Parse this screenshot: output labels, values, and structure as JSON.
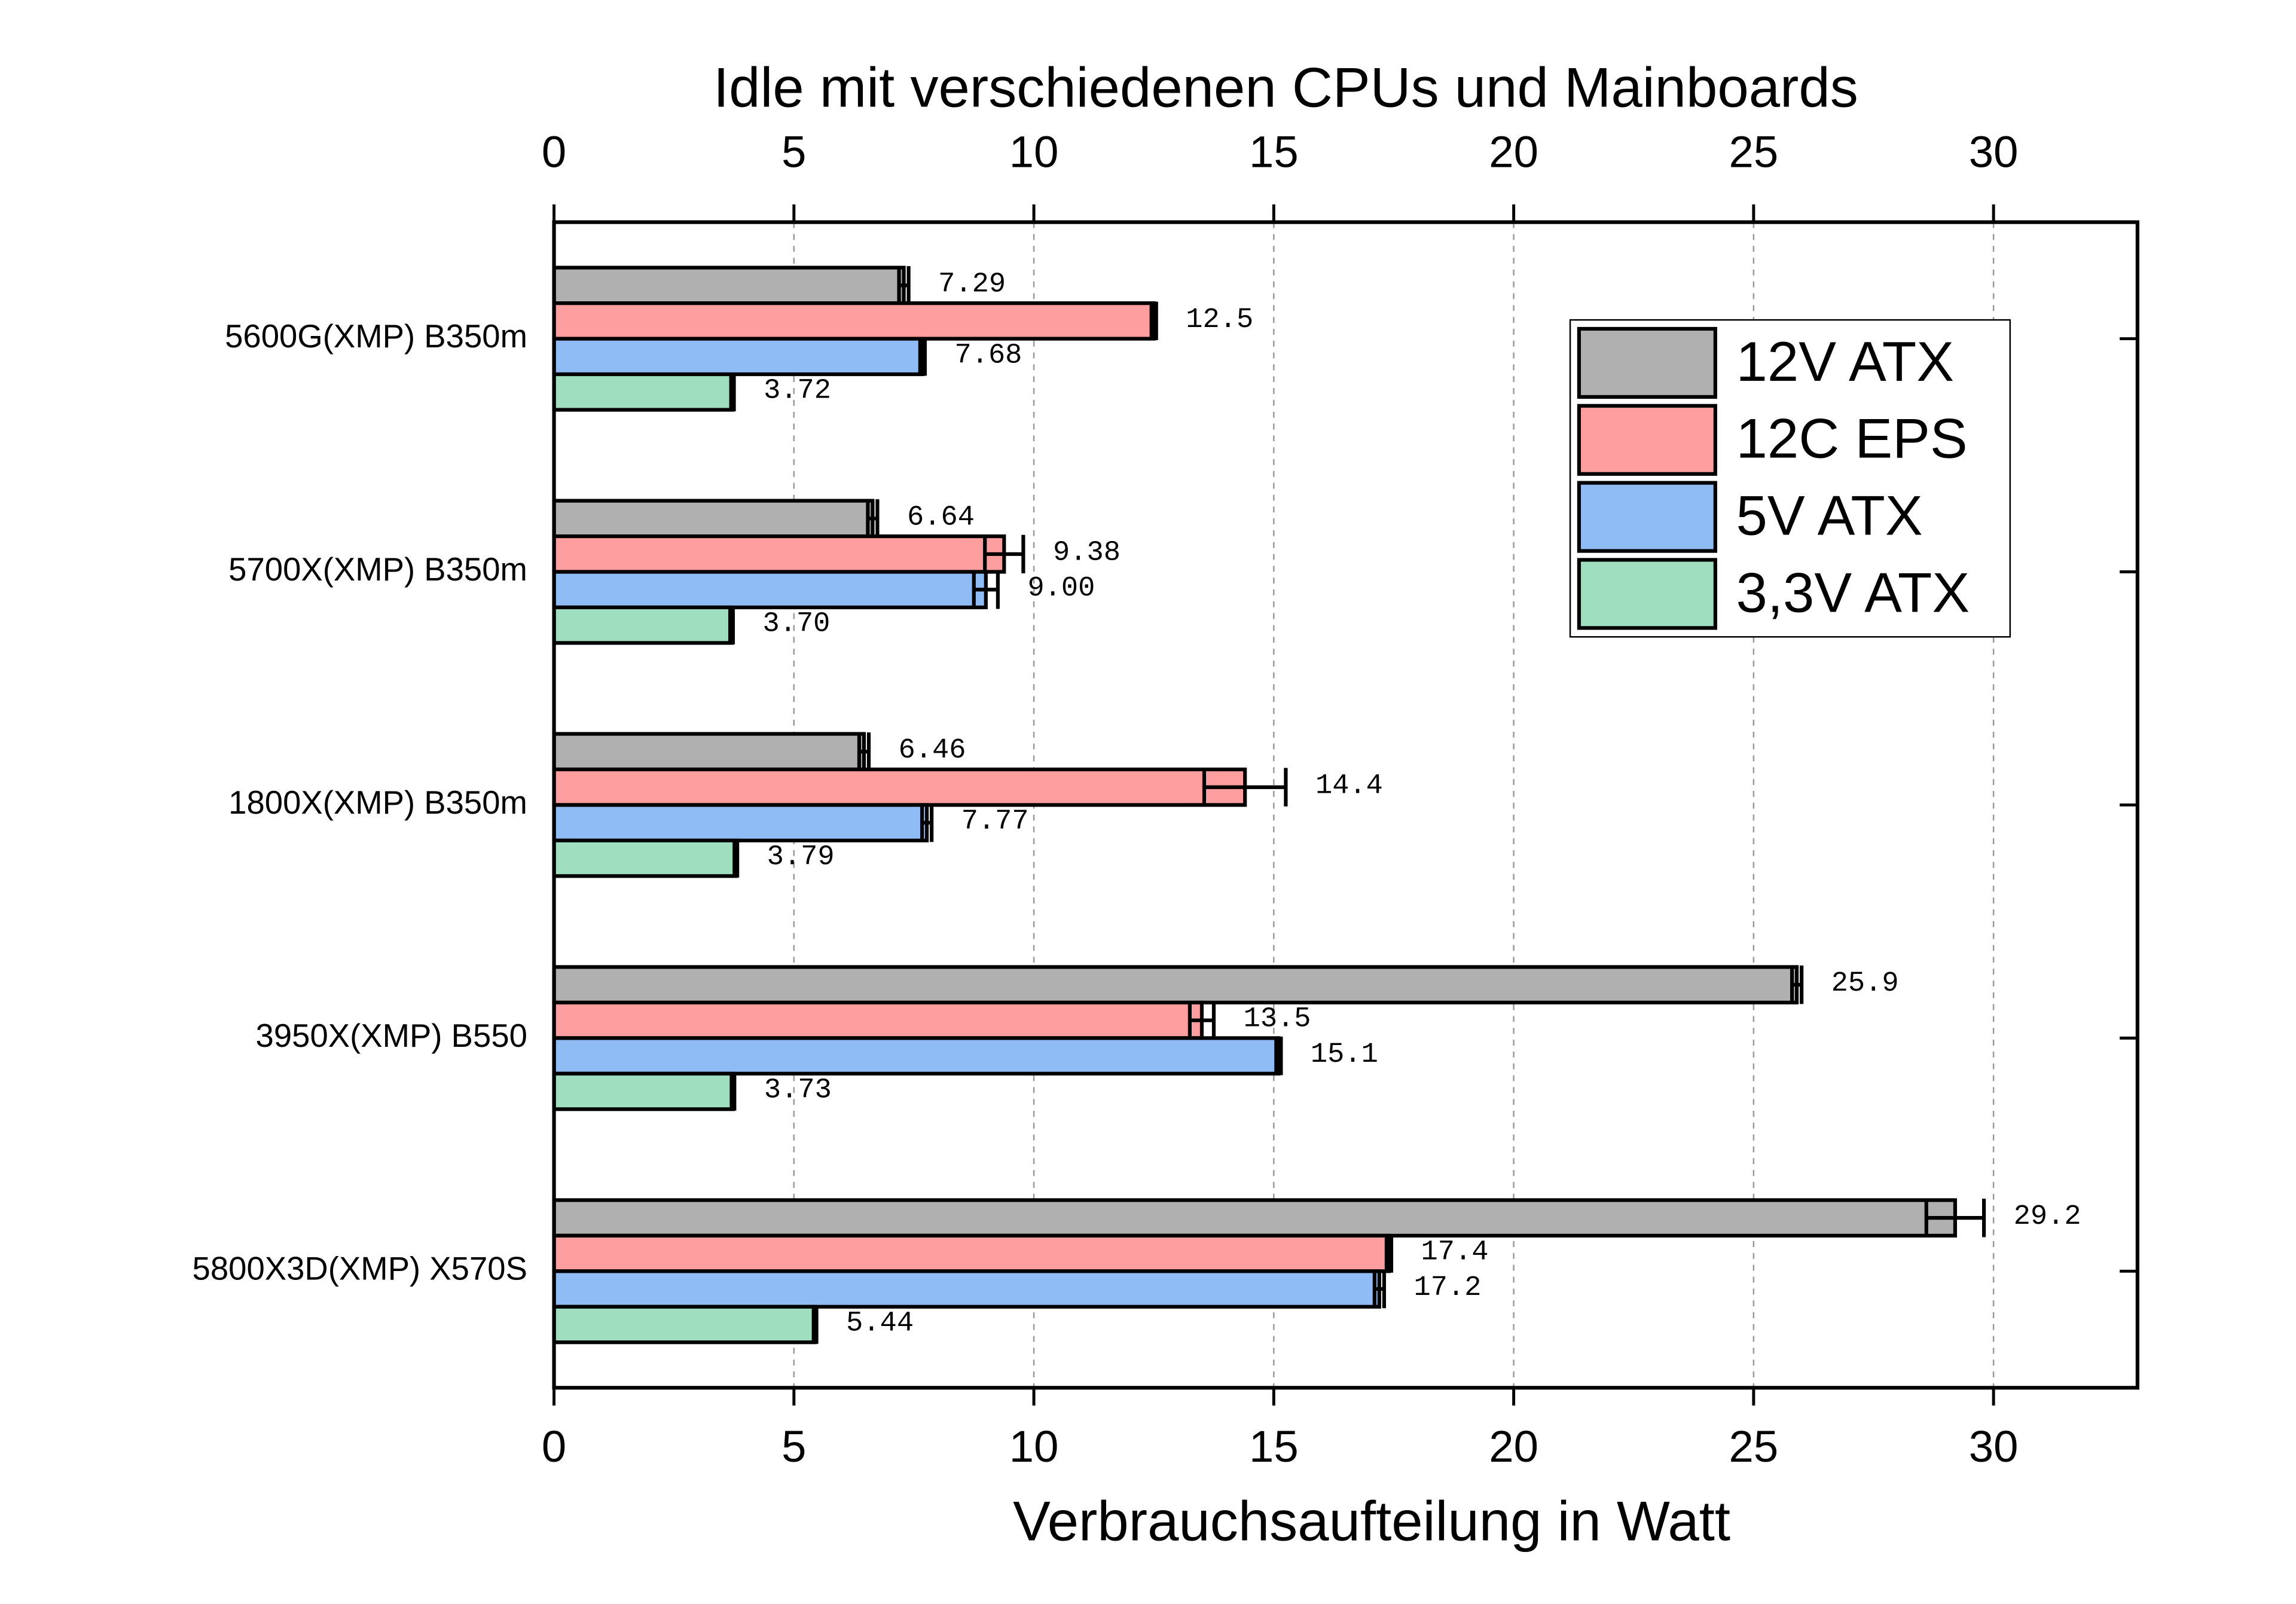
{
  "chart_data": {
    "type": "bar",
    "orientation": "horizontal",
    "title": "Idle mit verschiedenen CPUs und Mainboards",
    "x_label": "Verbrauchsaufteilung in Watt",
    "categories": [
      "5600G(XMP) B350m",
      "5700X(XMP) B350m",
      "1800X(XMP) B350m",
      "3950X(XMP) B550",
      "5800X3D(XMP) X570S"
    ],
    "series": [
      {
        "name": "12V ATX",
        "color": "#b0b0b0",
        "values": [
          7.29,
          6.64,
          6.46,
          25.9,
          29.2
        ],
        "value_labels": [
          "7.29",
          "6.64",
          "6.46",
          "25.9",
          "29.2"
        ],
        "errors": [
          0.1,
          0.1,
          0.1,
          0.1,
          0.6
        ]
      },
      {
        "name": "12C EPS",
        "color": "#ff9e9e",
        "values": [
          12.5,
          9.38,
          14.4,
          13.5,
          17.4
        ],
        "value_labels": [
          "12.5",
          "9.38",
          "14.4",
          "13.5",
          "17.4"
        ],
        "errors": [
          0.05,
          0.4,
          0.85,
          0.25,
          0.05
        ]
      },
      {
        "name": "5V ATX",
        "color": "#8fbcf5",
        "values": [
          7.68,
          9.0,
          7.77,
          15.1,
          17.2
        ],
        "value_labels": [
          "7.68",
          "9.00",
          "7.77",
          "15.1",
          "17.2"
        ],
        "errors": [
          0.05,
          0.25,
          0.1,
          0.05,
          0.1
        ]
      },
      {
        "name": "3,3V ATX",
        "color": "#9fdfbf",
        "values": [
          3.72,
          3.7,
          3.79,
          3.73,
          5.44
        ],
        "value_labels": [
          "3.72",
          "3.70",
          "3.79",
          "3.73",
          "5.44"
        ],
        "errors": [
          0.03,
          0.03,
          0.03,
          0.03,
          0.03
        ]
      }
    ],
    "xlim": [
      0,
      33
    ],
    "xticks": [
      0,
      5,
      10,
      15,
      20,
      25,
      30
    ],
    "grid": true,
    "legend": "upper right"
  }
}
